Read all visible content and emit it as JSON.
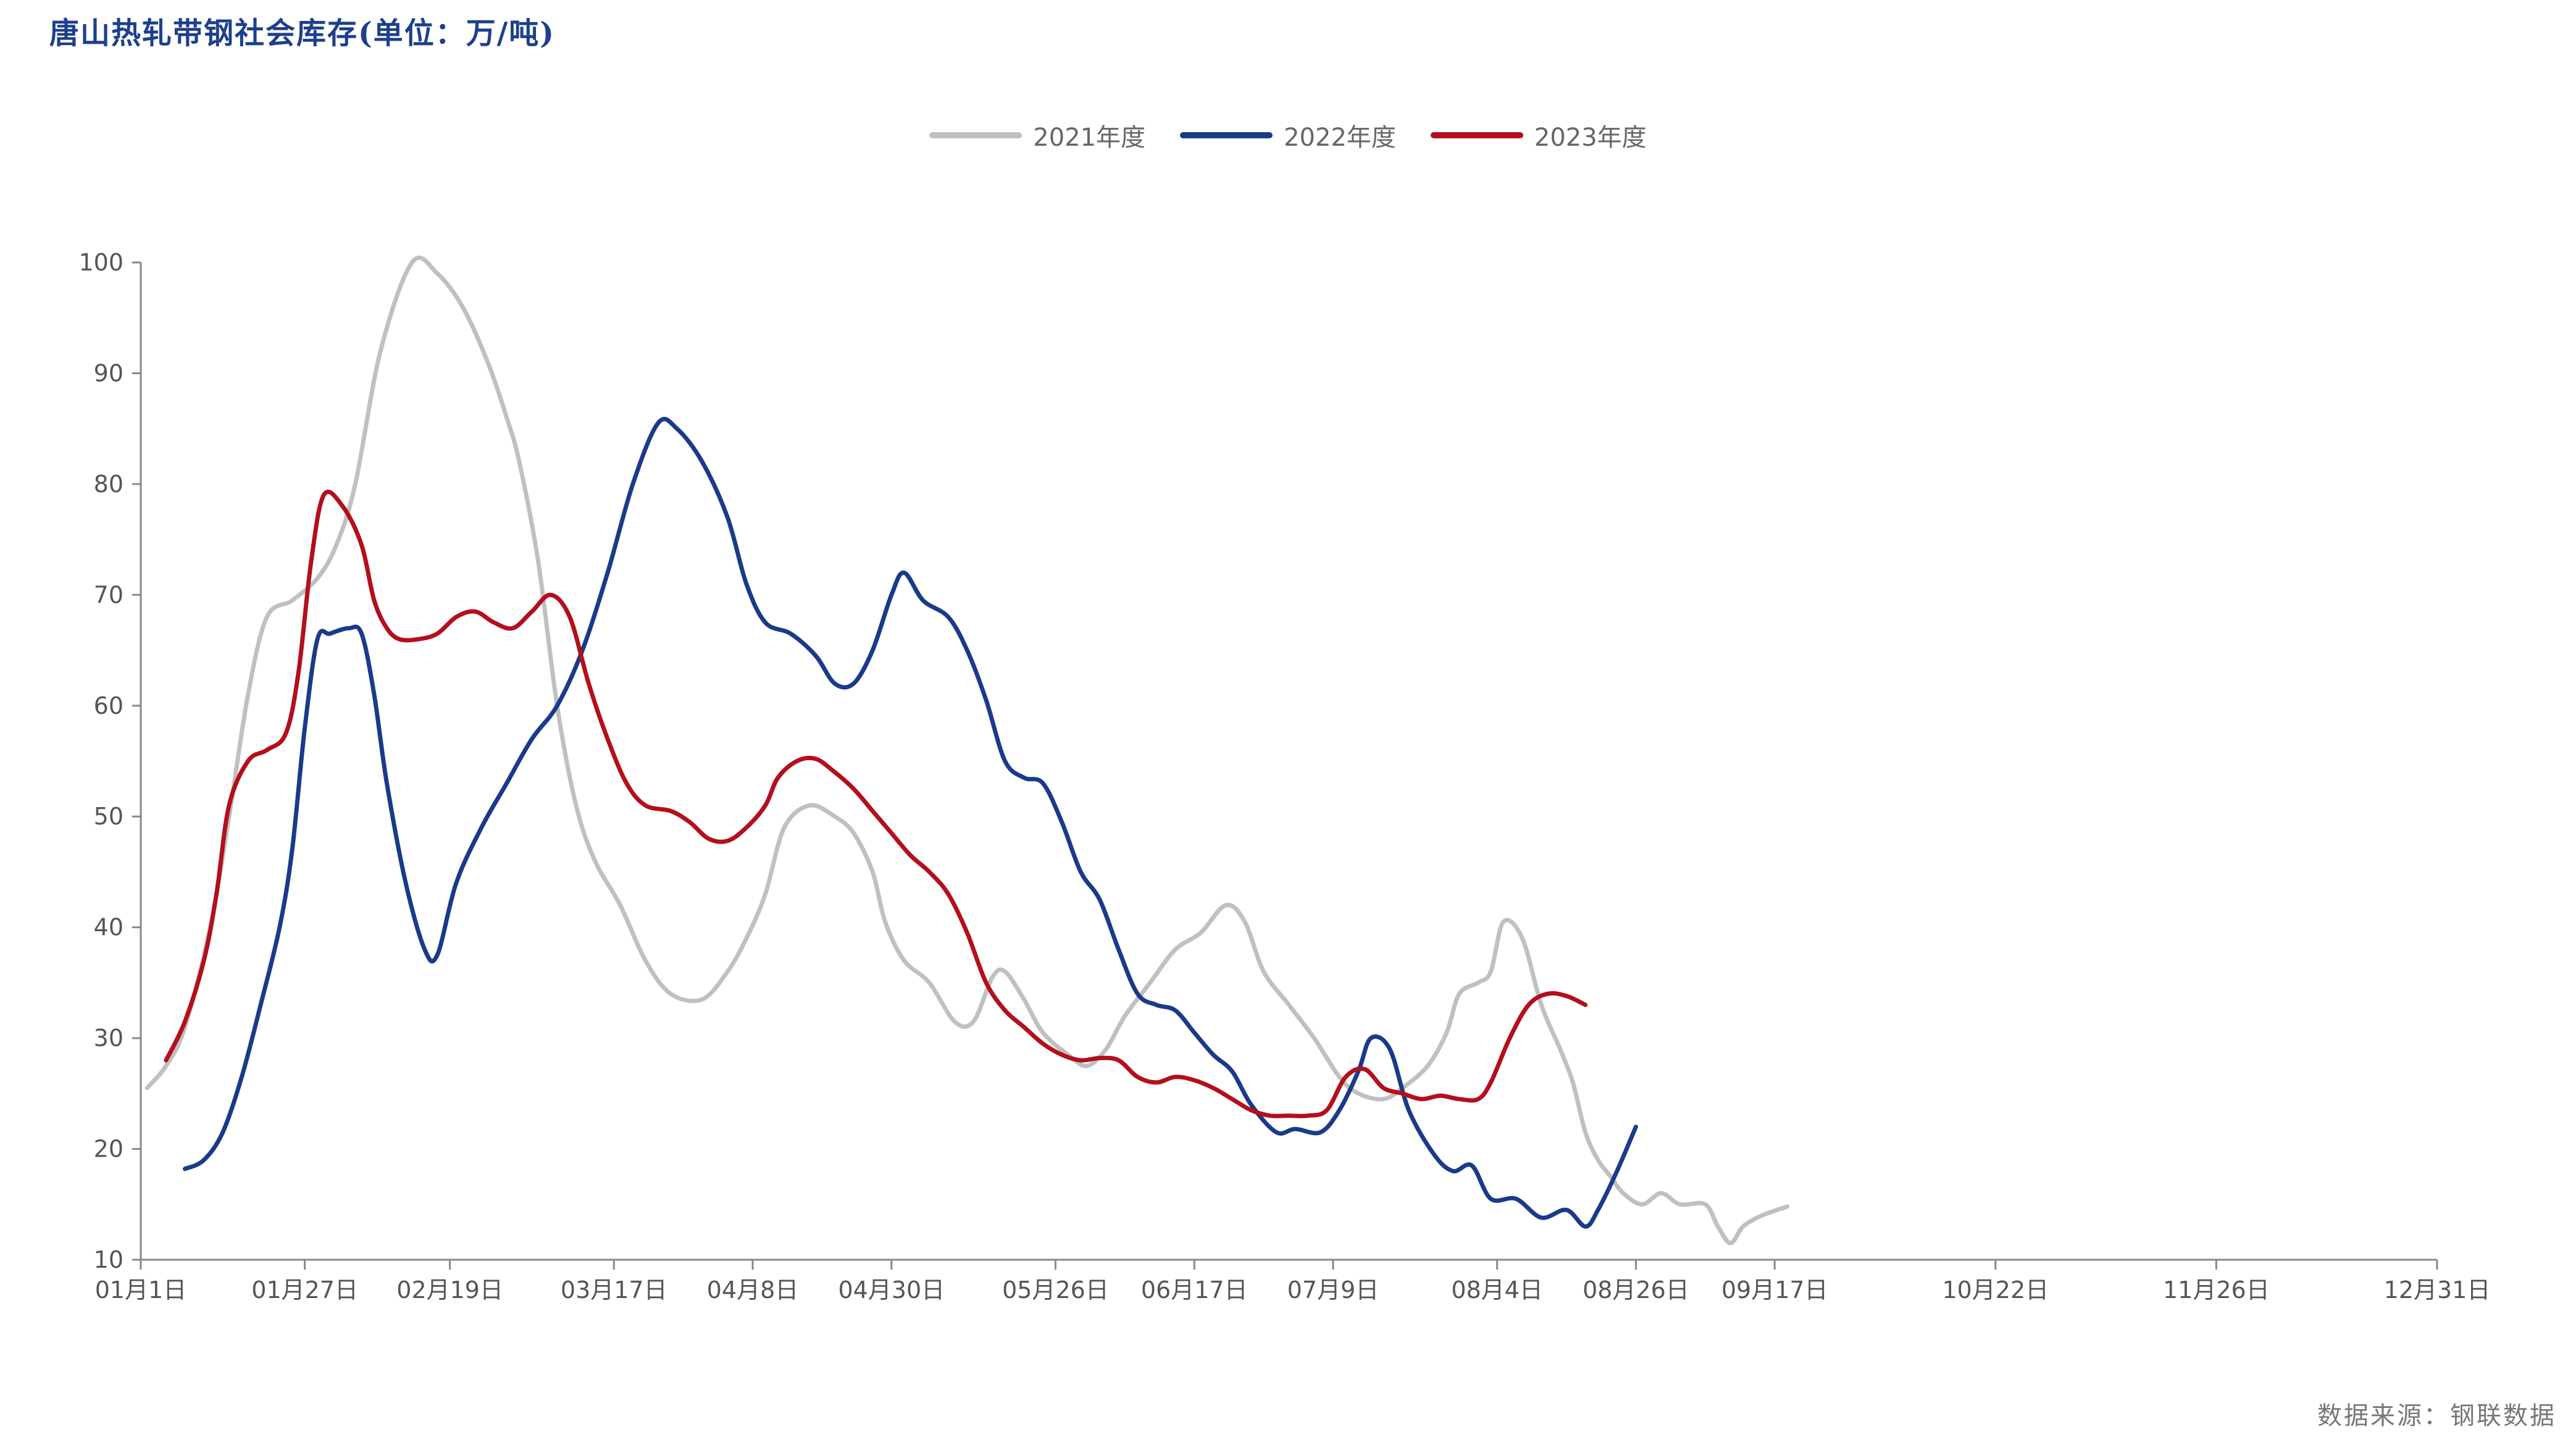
{
  "title": "唐山热轧带钢社会库存(单位：万/吨)",
  "source": "数据来源：钢联数据",
  "chart_data": {
    "type": "line",
    "title": "唐山热轧带钢社会库存(单位：万/吨)",
    "ylim": [
      10,
      100
    ],
    "yticks": [
      10,
      20,
      30,
      40,
      50,
      60,
      70,
      80,
      90,
      100
    ],
    "xlim": [
      1,
      365
    ],
    "xticks": [
      {
        "day": 1,
        "label": "01月1日"
      },
      {
        "day": 27,
        "label": "01月27日"
      },
      {
        "day": 50,
        "label": "02月19日"
      },
      {
        "day": 76,
        "label": "03月17日"
      },
      {
        "day": 98,
        "label": "04月8日"
      },
      {
        "day": 120,
        "label": "04月30日"
      },
      {
        "day": 146,
        "label": "05月26日"
      },
      {
        "day": 168,
        "label": "06月17日"
      },
      {
        "day": 190,
        "label": "07月9日"
      },
      {
        "day": 216,
        "label": "08月4日"
      },
      {
        "day": 238,
        "label": "08月26日"
      },
      {
        "day": 260,
        "label": "09月17日"
      },
      {
        "day": 295,
        "label": "10月22日"
      },
      {
        "day": 330,
        "label": "11月26日"
      },
      {
        "day": 365,
        "label": "12月31日"
      }
    ],
    "legend_position": "top-center",
    "series": [
      {
        "name": "2021年度",
        "color": "#c0c0c0",
        "points": [
          [
            2,
            25.5
          ],
          [
            5,
            27.5
          ],
          [
            8,
            31
          ],
          [
            12,
            40
          ],
          [
            15,
            50
          ],
          [
            18,
            61
          ],
          [
            21,
            68
          ],
          [
            25,
            69.5
          ],
          [
            29,
            71.5
          ],
          [
            32,
            74.5
          ],
          [
            35,
            80
          ],
          [
            39,
            92
          ],
          [
            44,
            100
          ],
          [
            48,
            99
          ],
          [
            52,
            96
          ],
          [
            56,
            91
          ],
          [
            59,
            86
          ],
          [
            61,
            82
          ],
          [
            64,
            73
          ],
          [
            67,
            60
          ],
          [
            70,
            51
          ],
          [
            73,
            46
          ],
          [
            77,
            42
          ],
          [
            81,
            37
          ],
          [
            85,
            34
          ],
          [
            90,
            33.5
          ],
          [
            94,
            36
          ],
          [
            97,
            39
          ],
          [
            100,
            43
          ],
          [
            103,
            49
          ],
          [
            107,
            51
          ],
          [
            111,
            50
          ],
          [
            114,
            48.5
          ],
          [
            117,
            45
          ],
          [
            119,
            40.5
          ],
          [
            122,
            37
          ],
          [
            126,
            35
          ],
          [
            130,
            31.5
          ],
          [
            133,
            31.5
          ],
          [
            136,
            35.5
          ],
          [
            138,
            36
          ],
          [
            141,
            33.5
          ],
          [
            144,
            30.5
          ],
          [
            148,
            28.5
          ],
          [
            151,
            27.5
          ],
          [
            154,
            29
          ],
          [
            157,
            32
          ],
          [
            161,
            35
          ],
          [
            165,
            38
          ],
          [
            169,
            39.5
          ],
          [
            173,
            42
          ],
          [
            176,
            40.5
          ],
          [
            179,
            36
          ],
          [
            183,
            33
          ],
          [
            187,
            30
          ],
          [
            191,
            26.5
          ],
          [
            194,
            25
          ],
          [
            198,
            24.5
          ],
          [
            201,
            25.5
          ],
          [
            205,
            27.5
          ],
          [
            208,
            30.5
          ],
          [
            210,
            34
          ],
          [
            213,
            35
          ],
          [
            215,
            36
          ],
          [
            217,
            40.5
          ],
          [
            220,
            39
          ],
          [
            223,
            33
          ],
          [
            226,
            29
          ],
          [
            228,
            26
          ],
          [
            230,
            21.5
          ],
          [
            232,
            19
          ],
          [
            234,
            17.5
          ],
          [
            236,
            16
          ],
          [
            239,
            15
          ],
          [
            242,
            16
          ],
          [
            245,
            15
          ],
          [
            249,
            15
          ],
          [
            251,
            13
          ],
          [
            253,
            11.5
          ],
          [
            255,
            13
          ],
          [
            258,
            14
          ],
          [
            262,
            14.8
          ]
        ]
      },
      {
        "name": "2022年度",
        "color": "#1a3a8a",
        "points": [
          [
            8,
            18.2
          ],
          [
            11,
            19
          ],
          [
            14,
            21.5
          ],
          [
            17,
            26.5
          ],
          [
            20,
            33
          ],
          [
            23,
            40
          ],
          [
            25,
            47
          ],
          [
            27,
            58
          ],
          [
            29,
            66
          ],
          [
            31,
            66.5
          ],
          [
            34,
            67
          ],
          [
            36,
            66.5
          ],
          [
            38,
            61
          ],
          [
            40,
            53
          ],
          [
            43,
            44
          ],
          [
            46,
            38
          ],
          [
            48,
            37.5
          ],
          [
            51,
            44
          ],
          [
            55,
            49
          ],
          [
            59,
            53
          ],
          [
            63,
            57
          ],
          [
            67,
            60
          ],
          [
            71,
            65
          ],
          [
            75,
            72
          ],
          [
            79,
            80
          ],
          [
            83,
            85.5
          ],
          [
            86,
            85
          ],
          [
            90,
            82
          ],
          [
            94,
            77
          ],
          [
            97,
            71
          ],
          [
            100,
            67.5
          ],
          [
            104,
            66.5
          ],
          [
            108,
            64.5
          ],
          [
            111,
            62
          ],
          [
            114,
            62
          ],
          [
            117,
            65
          ],
          [
            120,
            70
          ],
          [
            122,
            72
          ],
          [
            125,
            69.5
          ],
          [
            129,
            68
          ],
          [
            132,
            65
          ],
          [
            135,
            60.5
          ],
          [
            138,
            55
          ],
          [
            141,
            53.5
          ],
          [
            144,
            53
          ],
          [
            147,
            49.5
          ],
          [
            150,
            45
          ],
          [
            153,
            42.5
          ],
          [
            156,
            38
          ],
          [
            159,
            34
          ],
          [
            162,
            33
          ],
          [
            165,
            32.5
          ],
          [
            168,
            30.5
          ],
          [
            171,
            28.5
          ],
          [
            174,
            27
          ],
          [
            177,
            24
          ],
          [
            181,
            21.5
          ],
          [
            184,
            21.8
          ],
          [
            188,
            21.5
          ],
          [
            191,
            23.5
          ],
          [
            194,
            27
          ],
          [
            196,
            30
          ],
          [
            199,
            29
          ],
          [
            202,
            23.5
          ],
          [
            206,
            19.5
          ],
          [
            209,
            18
          ],
          [
            212,
            18.5
          ],
          [
            215,
            15.5
          ],
          [
            219,
            15.5
          ],
          [
            223,
            13.8
          ],
          [
            227,
            14.5
          ],
          [
            230,
            13
          ],
          [
            232,
            14.5
          ],
          [
            235,
            18
          ],
          [
            238,
            22
          ]
        ]
      },
      {
        "name": "2023年度",
        "color": "#b30f1c",
        "points": [
          [
            5,
            28
          ],
          [
            8,
            31.5
          ],
          [
            11,
            37
          ],
          [
            13,
            43
          ],
          [
            15,
            51
          ],
          [
            18,
            55
          ],
          [
            21,
            56
          ],
          [
            24,
            57.5
          ],
          [
            26,
            63
          ],
          [
            28,
            73
          ],
          [
            30,
            79
          ],
          [
            33,
            78
          ],
          [
            36,
            74.5
          ],
          [
            38,
            69.5
          ],
          [
            40,
            67
          ],
          [
            42,
            66
          ],
          [
            45,
            66
          ],
          [
            48,
            66.5
          ],
          [
            51,
            68
          ],
          [
            54,
            68.5
          ],
          [
            57,
            67.5
          ],
          [
            60,
            67
          ],
          [
            63,
            68.5
          ],
          [
            66,
            70
          ],
          [
            69,
            68
          ],
          [
            72,
            62
          ],
          [
            75,
            57
          ],
          [
            78,
            53
          ],
          [
            81,
            51
          ],
          [
            85,
            50.5
          ],
          [
            88,
            49.5
          ],
          [
            91,
            48
          ],
          [
            94,
            47.8
          ],
          [
            97,
            49
          ],
          [
            100,
            51
          ],
          [
            102,
            53.5
          ],
          [
            105,
            55
          ],
          [
            108,
            55.2
          ],
          [
            111,
            54
          ],
          [
            114,
            52.5
          ],
          [
            117,
            50.5
          ],
          [
            120,
            48.5
          ],
          [
            123,
            46.5
          ],
          [
            126,
            45
          ],
          [
            129,
            43
          ],
          [
            132,
            39.5
          ],
          [
            135,
            35
          ],
          [
            138,
            32.5
          ],
          [
            141,
            31
          ],
          [
            144,
            29.5
          ],
          [
            147,
            28.5
          ],
          [
            150,
            28
          ],
          [
            153,
            28.2
          ],
          [
            156,
            28
          ],
          [
            159,
            26.5
          ],
          [
            162,
            26
          ],
          [
            165,
            26.5
          ],
          [
            168,
            26.2
          ],
          [
            171,
            25.5
          ],
          [
            174,
            24.5
          ],
          [
            177,
            23.5
          ],
          [
            180,
            23
          ],
          [
            183,
            23
          ],
          [
            186,
            23
          ],
          [
            189,
            23.5
          ],
          [
            192,
            26.5
          ],
          [
            195,
            27.2
          ],
          [
            198,
            25.5
          ],
          [
            201,
            25
          ],
          [
            204,
            24.5
          ],
          [
            207,
            24.8
          ],
          [
            210,
            24.5
          ],
          [
            213,
            24.5
          ],
          [
            215,
            26
          ],
          [
            218,
            30
          ],
          [
            221,
            33
          ],
          [
            224,
            34
          ],
          [
            227,
            33.8
          ],
          [
            230,
            33
          ]
        ]
      }
    ]
  }
}
